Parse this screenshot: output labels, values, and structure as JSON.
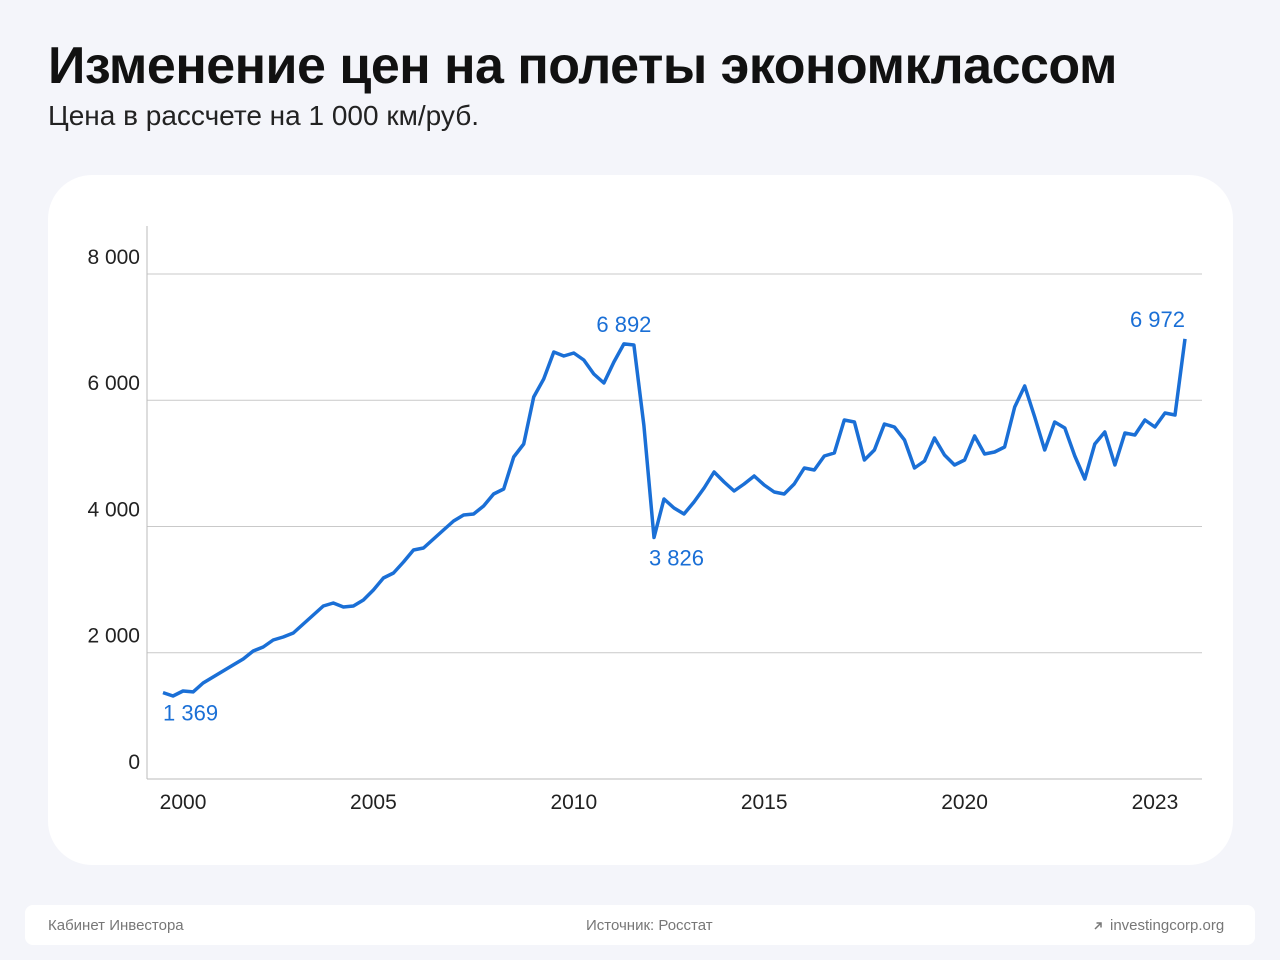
{
  "chart_data": {
    "type": "line",
    "title": "Изменение цен на полеты экономклассом",
    "subtitle": "Цена в рассчете на 1 000 км/руб.",
    "color": "#1a6fd6",
    "categories": [
      null,
      null,
      "2000",
      null,
      null,
      null,
      null,
      null,
      null,
      null,
      null,
      null,
      null,
      null,
      null,
      null,
      null,
      null,
      null,
      null,
      null,
      "2005",
      null,
      null,
      null,
      null,
      null,
      null,
      null,
      null,
      null,
      null,
      null,
      null,
      null,
      null,
      null,
      null,
      null,
      null,
      null,
      "2010",
      null,
      null,
      null,
      null,
      null,
      null,
      null,
      null,
      null,
      null,
      null,
      null,
      null,
      null,
      null,
      null,
      null,
      null,
      "2015",
      null,
      null,
      null,
      null,
      null,
      null,
      null,
      null,
      null,
      null,
      null,
      null,
      null,
      null,
      null,
      null,
      null,
      null,
      null,
      "2020",
      null,
      null,
      null,
      null,
      null,
      null,
      null,
      null,
      null,
      null,
      null,
      null,
      null,
      null,
      null,
      null,
      null,
      null,
      "2023",
      null,
      null,
      null
    ],
    "values": [
      1369,
      1315,
      1394,
      1380,
      1521,
      1616,
      1711,
      1806,
      1901,
      2028,
      2091,
      2202,
      2249,
      2313,
      2455,
      2598,
      2740,
      2788,
      2724,
      2740,
      2835,
      2994,
      3184,
      3263,
      3437,
      3627,
      3659,
      3802,
      3944,
      4087,
      4182,
      4198,
      4324,
      4514,
      4594,
      5100,
      5306,
      6051,
      6336,
      6764,
      6700,
      6748,
      6637,
      6415,
      6273,
      6605,
      6892,
      6875,
      5600,
      3826,
      4435,
      4293,
      4198,
      4388,
      4610,
      4863,
      4705,
      4562,
      4673,
      4800,
      4657,
      4546,
      4514,
      4673,
      4926,
      4895,
      5116,
      5164,
      5687,
      5655,
      5053,
      5211,
      5623,
      5576,
      5370,
      4926,
      5037,
      5401,
      5132,
      4974,
      5053,
      5433,
      5148,
      5180,
      5259,
      5893,
      6225,
      5734,
      5211,
      5655,
      5560,
      5116,
      4752,
      5306,
      5497,
      4974,
      5481,
      5449,
      5687,
      5576,
      5797,
      5766,
      6972
    ],
    "value_labels": [
      "1 369",
      null,
      null,
      null,
      null,
      null,
      null,
      null,
      null,
      null,
      null,
      null,
      null,
      null,
      null,
      null,
      null,
      null,
      null,
      null,
      null,
      null,
      null,
      null,
      null,
      null,
      null,
      null,
      null,
      null,
      null,
      null,
      null,
      null,
      null,
      null,
      null,
      null,
      null,
      null,
      null,
      null,
      null,
      null,
      null,
      null,
      "6 892",
      null,
      null,
      "3 826",
      null,
      null,
      null,
      null,
      null,
      null,
      null,
      null,
      null,
      null,
      null,
      null,
      null,
      null,
      null,
      null,
      null,
      null,
      null,
      null,
      null,
      null,
      null,
      null,
      null,
      null,
      null,
      null,
      null,
      null,
      null,
      null,
      null,
      null,
      null,
      null,
      null,
      null,
      null,
      null,
      null,
      null,
      null,
      null,
      null,
      null,
      null,
      null,
      null,
      null,
      null,
      null,
      "6 972"
    ],
    "ylim": [
      0,
      8760
    ],
    "yticks": [
      0,
      {
        "value": 2000,
        "label": "2 000"
      },
      {
        "value": 4000,
        "label": "4 000"
      },
      {
        "value": 6000,
        "label": "6 000"
      },
      {
        "value": 8000,
        "label": "8 000"
      }
    ],
    "grid": true
  },
  "footer": {
    "left": "Кабинет Инвестора",
    "center": "Источник: Росстат",
    "right": "investingcorp.org"
  }
}
